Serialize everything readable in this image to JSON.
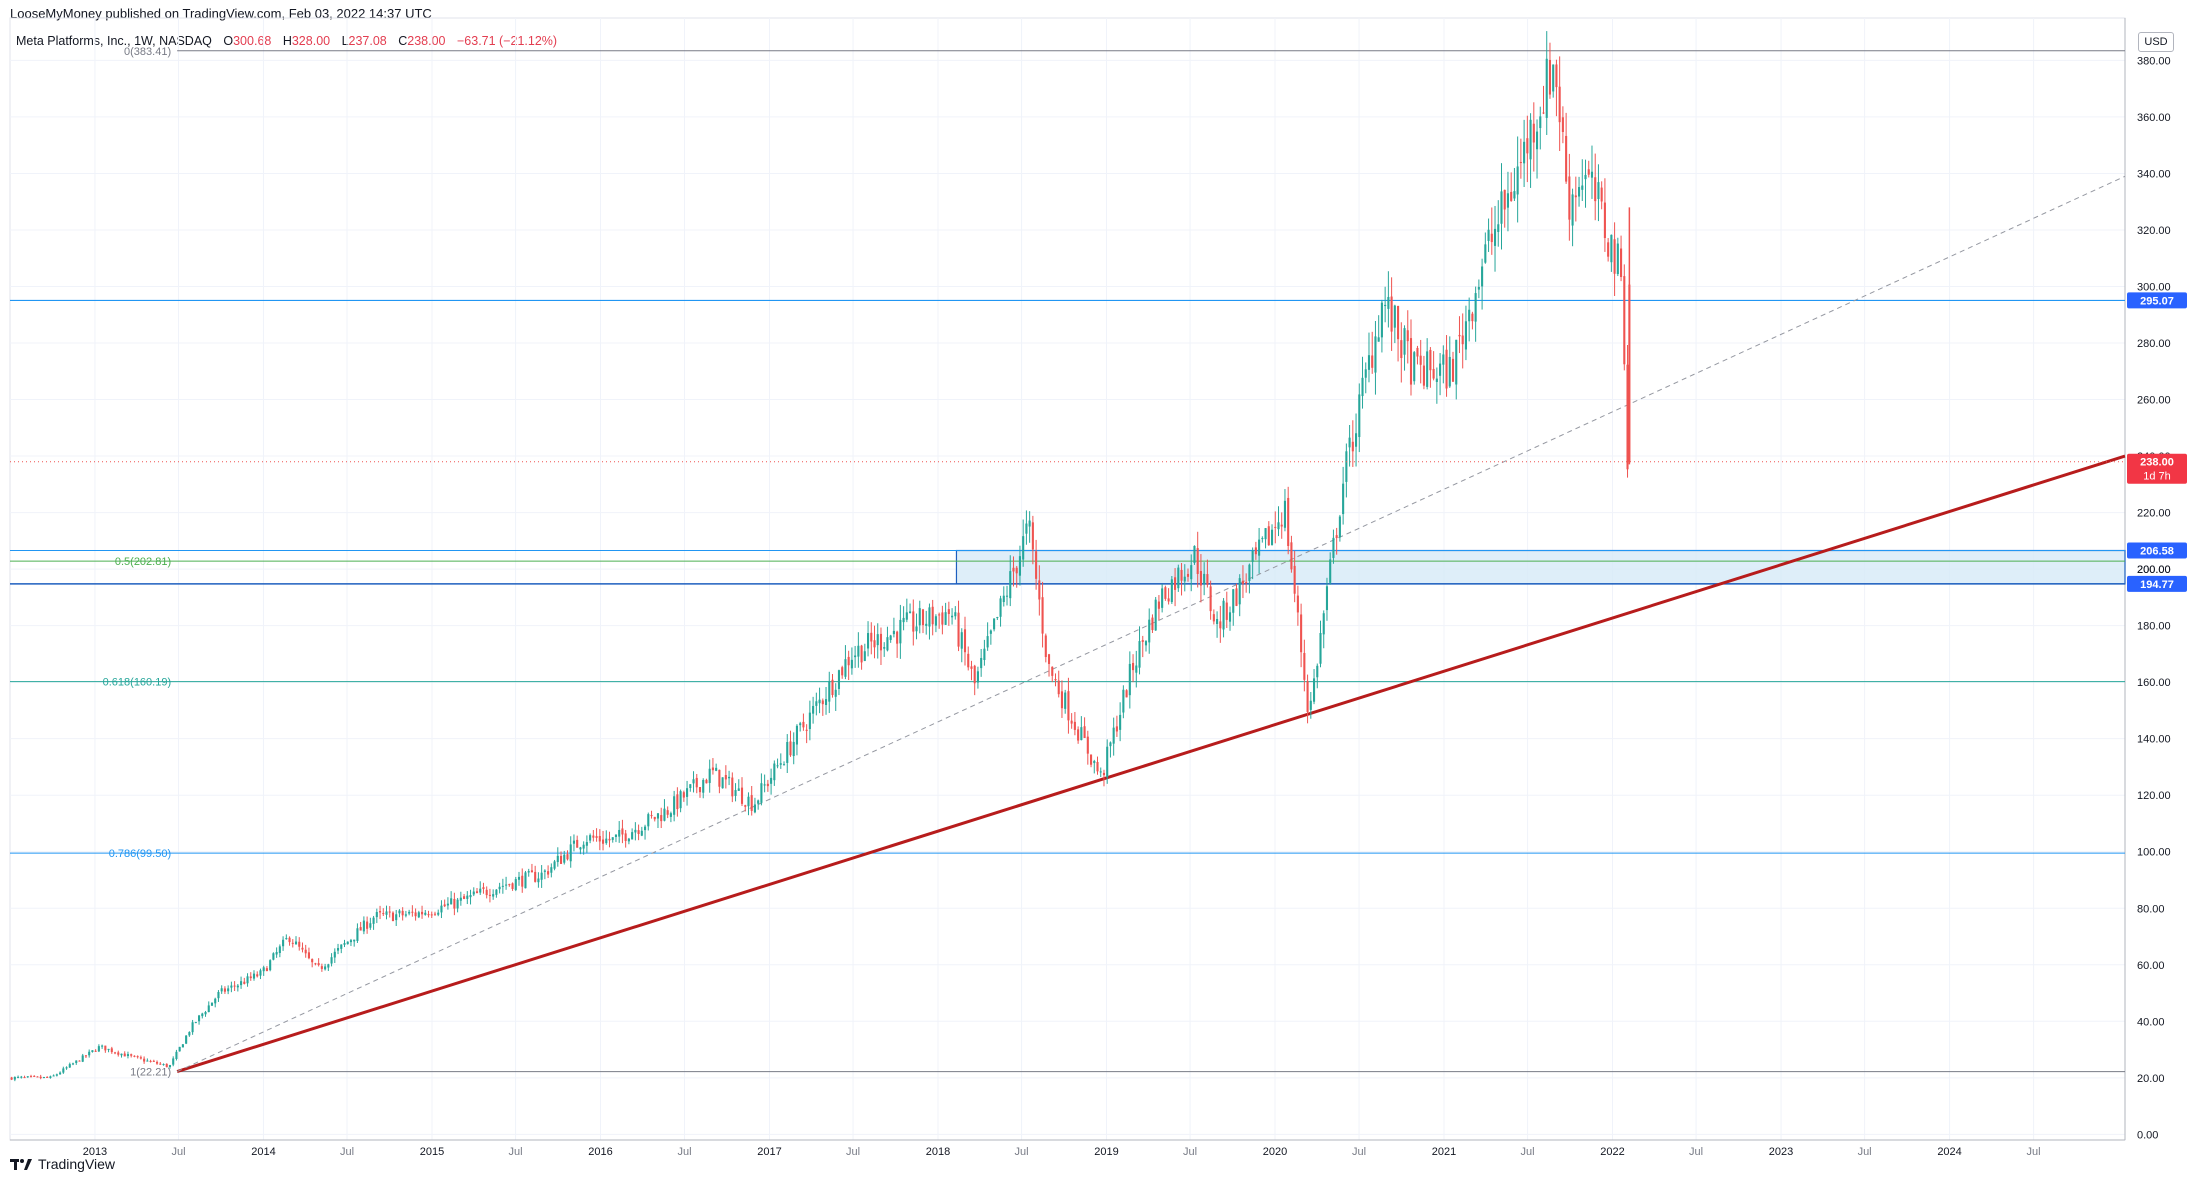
{
  "header": {
    "publisher_line": "LooseMyMoney published on TradingView.com, Feb 03, 2022 14:37 UTC"
  },
  "symbol": {
    "name": "Meta Platforms, Inc., 1W, NASDAQ",
    "open_label": "O",
    "open": "300.68",
    "high_label": "H",
    "high": "328.00",
    "low_label": "L",
    "low": "237.08",
    "close_label": "C",
    "close": "238.00",
    "change": "−63.71 (−21.12%)"
  },
  "currency": "USD",
  "footer": {
    "brand": "TradingView"
  },
  "colors": {
    "bull": "#26a69a",
    "bear": "#ef5350",
    "trend_red": "#b71c1c",
    "fib_gray": "#787b86",
    "fib_green": "#4caf50",
    "fib_teal": "#26a69a",
    "fib_blue": "#2196f3",
    "zone_fill": "#d6eaf8",
    "zone_border": "#1e5fbf",
    "price_badge": "#f23645",
    "level_badge": "#2962ff"
  },
  "chart_data": {
    "type": "candlestick",
    "interval": "1W",
    "y_axis": {
      "ticks": [
        0,
        20,
        40,
        60,
        80,
        100,
        120,
        140,
        160,
        180,
        200,
        220,
        240,
        260,
        280,
        300,
        320,
        340,
        360,
        380
      ],
      "tick_labels": [
        "0.00",
        "20.00",
        "40.00",
        "60.00",
        "80.00",
        "100.00",
        "120.00",
        "140.00",
        "160.00",
        "180.00",
        "200.00",
        "220.00",
        "240.00",
        "260.00",
        "280.00",
        "300.00",
        "320.00",
        "340.00",
        "360.00",
        "380.00"
      ],
      "range": [
        -2,
        395
      ]
    },
    "x_axis": {
      "range": [
        "2012-07-01",
        "2025-01-15"
      ],
      "ticks": [
        {
          "date": "2013-01-01",
          "label": "2013"
        },
        {
          "date": "2013-07-01",
          "label": "Jul"
        },
        {
          "date": "2014-01-01",
          "label": "2014"
        },
        {
          "date": "2014-07-01",
          "label": "Jul"
        },
        {
          "date": "2015-01-01",
          "label": "2015"
        },
        {
          "date": "2015-07-01",
          "label": "Jul"
        },
        {
          "date": "2016-01-01",
          "label": "2016"
        },
        {
          "date": "2016-07-01",
          "label": "Jul"
        },
        {
          "date": "2017-01-01",
          "label": "2017"
        },
        {
          "date": "2017-07-01",
          "label": "Jul"
        },
        {
          "date": "2018-01-01",
          "label": "2018"
        },
        {
          "date": "2018-07-01",
          "label": "Jul"
        },
        {
          "date": "2019-01-01",
          "label": "2019"
        },
        {
          "date": "2019-07-01",
          "label": "Jul"
        },
        {
          "date": "2020-01-01",
          "label": "2020"
        },
        {
          "date": "2020-07-01",
          "label": "Jul"
        },
        {
          "date": "2021-01-01",
          "label": "2021"
        },
        {
          "date": "2021-07-01",
          "label": "Jul"
        },
        {
          "date": "2022-01-01",
          "label": "2022"
        },
        {
          "date": "2022-07-01",
          "label": "Jul"
        },
        {
          "date": "2023-01-01",
          "label": "2023"
        },
        {
          "date": "2023-07-01",
          "label": "Jul"
        },
        {
          "date": "2024-01-01",
          "label": "2024"
        },
        {
          "date": "2024-07-01",
          "label": "Jul"
        }
      ]
    },
    "price_path": [
      [
        "2012-07-01",
        20
      ],
      [
        "2012-10-01",
        20
      ],
      [
        "2013-01-15",
        31
      ],
      [
        "2013-04-01",
        27
      ],
      [
        "2013-06-15",
        24
      ],
      [
        "2013-08-01",
        38
      ],
      [
        "2013-10-01",
        50
      ],
      [
        "2014-01-01",
        57
      ],
      [
        "2014-03-01",
        70
      ],
      [
        "2014-05-01",
        58
      ],
      [
        "2014-09-01",
        77
      ],
      [
        "2014-12-01",
        78
      ],
      [
        "2015-03-01",
        82
      ],
      [
        "2015-06-01",
        88
      ],
      [
        "2015-09-01",
        92
      ],
      [
        "2015-12-01",
        105
      ],
      [
        "2016-02-01",
        104
      ],
      [
        "2016-06-01",
        115
      ],
      [
        "2016-09-01",
        128
      ],
      [
        "2016-12-01",
        117
      ],
      [
        "2017-03-01",
        140
      ],
      [
        "2017-07-01",
        170
      ],
      [
        "2017-11-01",
        180
      ],
      [
        "2018-02-01",
        185
      ],
      [
        "2018-03-25",
        159
      ],
      [
        "2018-07-20",
        215
      ],
      [
        "2018-09-01",
        165
      ],
      [
        "2018-12-24",
        126
      ],
      [
        "2019-03-01",
        165
      ],
      [
        "2019-05-01",
        190
      ],
      [
        "2019-07-15",
        205
      ],
      [
        "2019-09-01",
        180
      ],
      [
        "2019-12-01",
        205
      ],
      [
        "2020-01-25",
        222
      ],
      [
        "2020-03-18",
        148
      ],
      [
        "2020-06-01",
        232
      ],
      [
        "2020-08-25",
        295
      ],
      [
        "2020-11-01",
        270
      ],
      [
        "2021-01-20",
        270
      ],
      [
        "2021-04-01",
        310
      ],
      [
        "2021-06-01",
        335
      ],
      [
        "2021-09-01",
        380
      ],
      [
        "2021-10-01",
        330
      ],
      [
        "2021-11-01",
        340
      ],
      [
        "2021-12-01",
        330
      ],
      [
        "2022-01-28",
        301
      ],
      [
        "2022-02-03",
        238
      ]
    ],
    "last_candle": {
      "date": "2022-01-31",
      "open": 300.68,
      "high": 328.0,
      "low": 237.08,
      "close": 238.0
    },
    "fibonacci": [
      {
        "ratio": "0",
        "label": "0(383.41)",
        "price": 383.41
      },
      {
        "ratio": "0.5",
        "label": "0.5(202.81)",
        "price": 202.81
      },
      {
        "ratio": "0.618",
        "label": "0.618(160.19)",
        "price": 160.19
      },
      {
        "ratio": "0.786",
        "label": "0.786(99.50)",
        "price": 99.5
      },
      {
        "ratio": "1",
        "label": "1(22.21)",
        "price": 22.21
      }
    ],
    "fib_range_dates": [
      "2013-06-28",
      "2025-01-15"
    ],
    "horizontal_levels": [
      {
        "price": 295.07,
        "label": "295.07"
      }
    ],
    "zone": {
      "from_date": "2018-02-10",
      "to_date": "2025-01-15",
      "top": 206.58,
      "bottom": 194.77,
      "top_label": "206.58",
      "mid_label": "200.00",
      "bottom_label": "194.77"
    },
    "trendlines": [
      {
        "from": [
          "2013-06-28",
          22.21
        ],
        "to": [
          "2025-01-15",
          240
        ],
        "style": "solid"
      },
      {
        "from": [
          "2013-06-28",
          22.21
        ],
        "to": [
          "2025-01-15",
          339
        ],
        "style": "dashed"
      }
    ],
    "current_price": {
      "price": 238.0,
      "label": "238.00",
      "countdown": "1d 7h"
    }
  }
}
